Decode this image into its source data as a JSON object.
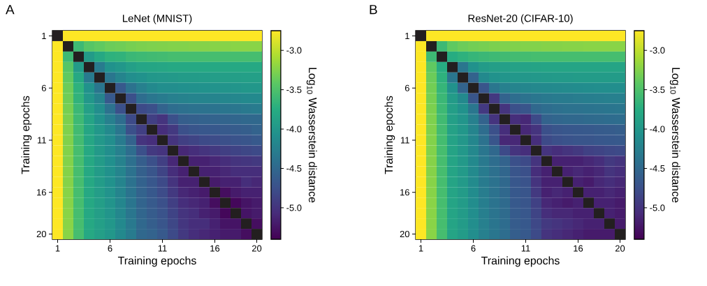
{
  "chart_data": [
    {
      "type": "heatmap",
      "title": "LeNet (MNIST)",
      "xlabel": "Training epochs",
      "ylabel": "Training epochs",
      "clabel": "Log$_{10}$ Wasserstein distance",
      "annotations": [
        "A"
      ],
      "categories": [
        "1",
        null,
        null,
        null,
        null,
        "6",
        null,
        null,
        null,
        null,
        "11",
        null,
        null,
        null,
        null,
        "16",
        null,
        null,
        null,
        "20"
      ],
      "y_categories": [
        "1",
        null,
        null,
        null,
        null,
        "6",
        null,
        null,
        null,
        null,
        "11",
        null,
        null,
        null,
        null,
        "16",
        null,
        null,
        null,
        "20"
      ],
      "clim": [
        -5.4,
        -2.75
      ],
      "cticks": [
        {
          "value": -3.0,
          "label": "-3.0"
        },
        {
          "value": -3.5,
          "label": "-3.5"
        },
        {
          "value": -4.0,
          "label": "-4.0"
        },
        {
          "value": -4.5,
          "label": "-4.5"
        },
        {
          "value": -5.0,
          "label": "-5.0"
        }
      ],
      "cells": [
        [
          null,
          -2.75,
          -2.75,
          -2.75,
          -2.75,
          -2.75,
          -2.75,
          -2.75,
          -2.75,
          -2.75,
          -2.75,
          -2.75,
          -2.75,
          -2.75,
          -2.75,
          -2.75,
          -2.75,
          -2.75,
          -2.75,
          -2.75
        ],
        [
          -2.75,
          null,
          -3.6,
          -3.45,
          -3.4,
          -3.35,
          -3.33,
          -3.3,
          -3.28,
          -3.27,
          -3.26,
          -3.25,
          -3.25,
          -3.24,
          -3.24,
          -3.23,
          -3.23,
          -3.22,
          -3.22,
          -3.22
        ],
        [
          -2.75,
          -3.6,
          null,
          -3.95,
          -3.8,
          -3.7,
          -3.68,
          -3.62,
          -3.6,
          -3.58,
          -3.57,
          -3.55,
          -3.55,
          -3.55,
          -3.55,
          -3.55,
          -3.55,
          -3.55,
          -3.55,
          -3.55
        ],
        [
          -2.75,
          -3.45,
          -3.95,
          null,
          -4.3,
          -4.05,
          -4.0,
          -3.9,
          -3.85,
          -3.83,
          -3.82,
          -3.8,
          -3.8,
          -3.8,
          -3.8,
          -3.8,
          -3.8,
          -3.8,
          -3.8,
          -3.8
        ],
        [
          -2.75,
          -3.4,
          -3.8,
          -4.3,
          null,
          -4.35,
          -4.2,
          -4.1,
          -4.05,
          -4.0,
          -3.98,
          -3.97,
          -3.95,
          -3.95,
          -3.94,
          -3.93,
          -3.92,
          -3.91,
          -3.9,
          -3.9
        ],
        [
          -2.75,
          -3.35,
          -3.7,
          -4.05,
          -4.35,
          null,
          -4.65,
          -4.4,
          -4.25,
          -4.15,
          -4.1,
          -4.1,
          -4.08,
          -4.06,
          -4.05,
          -4.04,
          -4.03,
          -4.02,
          -4.0,
          -4.0
        ],
        [
          -2.75,
          -3.33,
          -3.68,
          -4.0,
          -4.2,
          -4.65,
          null,
          -4.75,
          -4.45,
          -4.35,
          -4.3,
          -4.25,
          -4.22,
          -4.2,
          -4.2,
          -4.2,
          -4.18,
          -4.17,
          -4.15,
          -4.15
        ],
        [
          -2.75,
          -3.3,
          -3.62,
          -3.9,
          -4.1,
          -4.4,
          -4.75,
          null,
          -4.8,
          -4.75,
          -4.55,
          -4.45,
          -4.42,
          -4.4,
          -4.4,
          -4.38,
          -4.36,
          -4.35,
          -4.32,
          -4.3
        ],
        [
          -2.75,
          -3.28,
          -3.6,
          -3.85,
          -4.05,
          -4.25,
          -4.45,
          -4.8,
          null,
          -4.9,
          -5.0,
          -4.75,
          -4.6,
          -4.58,
          -4.56,
          -4.55,
          -4.54,
          -4.52,
          -4.5,
          -4.5
        ],
        [
          -2.75,
          -3.27,
          -3.58,
          -3.83,
          -4.0,
          -4.15,
          -4.35,
          -4.75,
          -4.9,
          null,
          -5.05,
          -4.95,
          -4.75,
          -4.7,
          -4.68,
          -4.66,
          -4.64,
          -4.62,
          -4.6,
          -4.55
        ],
        [
          -2.75,
          -3.26,
          -3.57,
          -3.82,
          -3.98,
          -4.1,
          -4.3,
          -4.55,
          -5.0,
          -5.05,
          null,
          -5.0,
          -4.9,
          -4.85,
          -4.8,
          -4.78,
          -4.75,
          -4.72,
          -4.7,
          -4.65
        ],
        [
          -2.75,
          -3.25,
          -3.55,
          -3.8,
          -3.97,
          -4.1,
          -4.25,
          -4.45,
          -4.75,
          -4.95,
          -5.0,
          null,
          -5.1,
          -5.05,
          -5.0,
          -4.95,
          -4.9,
          -4.86,
          -4.83,
          -4.8
        ],
        [
          -2.75,
          -3.25,
          -3.55,
          -3.8,
          -3.95,
          -4.08,
          -4.22,
          -4.42,
          -4.6,
          -4.75,
          -4.9,
          -5.1,
          null,
          -5.15,
          -5.15,
          -5.1,
          -5.05,
          -5.0,
          -4.98,
          -4.95
        ],
        [
          -2.75,
          -3.24,
          -3.55,
          -3.8,
          -3.95,
          -4.06,
          -4.2,
          -4.4,
          -4.58,
          -4.7,
          -4.85,
          -5.05,
          -5.15,
          null,
          -5.15,
          -5.15,
          -5.1,
          -5.05,
          -5.05,
          -5.05
        ],
        [
          -2.75,
          -3.24,
          -3.55,
          -3.8,
          -3.94,
          -4.05,
          -4.2,
          -4.4,
          -4.56,
          -4.68,
          -4.8,
          -5.0,
          -5.15,
          -5.15,
          null,
          -5.2,
          -5.15,
          -5.15,
          -5.05,
          -5.1
        ],
        [
          -2.75,
          -3.23,
          -3.55,
          -3.8,
          -3.93,
          -4.04,
          -4.2,
          -4.38,
          -4.55,
          -4.66,
          -4.78,
          -4.95,
          -5.1,
          -5.15,
          -5.2,
          null,
          -5.3,
          -5.2,
          -5.15,
          -5.15
        ],
        [
          -2.75,
          -3.23,
          -3.55,
          -3.8,
          -3.92,
          -4.03,
          -4.18,
          -4.36,
          -4.54,
          -4.64,
          -4.75,
          -4.9,
          -5.05,
          -5.1,
          -5.15,
          -5.3,
          null,
          -5.35,
          -5.25,
          -5.2
        ],
        [
          -2.75,
          -3.22,
          -3.55,
          -3.8,
          -3.91,
          -4.02,
          -4.17,
          -4.35,
          -4.52,
          -4.62,
          -4.72,
          -4.86,
          -5.0,
          -5.05,
          -5.15,
          -5.2,
          -5.35,
          null,
          -5.25,
          -5.2
        ],
        [
          -2.75,
          -3.22,
          -3.55,
          -3.8,
          -3.9,
          -4.0,
          -4.15,
          -4.32,
          -4.5,
          -4.6,
          -4.7,
          -4.83,
          -4.98,
          -5.05,
          -5.05,
          -5.15,
          -5.25,
          -5.25,
          null,
          -5.3
        ],
        [
          -2.75,
          -3.22,
          -3.55,
          -3.8,
          -3.9,
          -4.0,
          -4.15,
          -4.3,
          -4.5,
          -4.55,
          -4.65,
          -4.8,
          -4.95,
          -5.05,
          -5.1,
          -5.15,
          -5.2,
          -5.2,
          -5.3,
          null
        ]
      ]
    },
    {
      "type": "heatmap",
      "title": "ResNet-20 (CIFAR-10)",
      "xlabel": "Training epochs",
      "ylabel": "Training epochs",
      "clabel": "Log$_{10}$ Wasserstein distance",
      "annotations": [
        "B"
      ],
      "categories": [
        "1",
        null,
        null,
        null,
        null,
        "6",
        null,
        null,
        null,
        null,
        "11",
        null,
        null,
        null,
        null,
        "16",
        null,
        null,
        null,
        "20"
      ],
      "y_categories": [
        "1",
        null,
        null,
        null,
        null,
        "6",
        null,
        null,
        null,
        null,
        "11",
        null,
        null,
        null,
        null,
        "16",
        null,
        null,
        null,
        "20"
      ],
      "clim": [
        -5.4,
        -2.75
      ],
      "cticks": [
        {
          "value": -3.0,
          "label": "-3.0"
        },
        {
          "value": -3.5,
          "label": "-3.5"
        },
        {
          "value": -4.0,
          "label": "-4.0"
        },
        {
          "value": -4.5,
          "label": "-4.5"
        },
        {
          "value": -5.0,
          "label": "-5.0"
        }
      ],
      "cells": [
        [
          null,
          -2.75,
          -2.75,
          -2.75,
          -2.75,
          -2.75,
          -2.75,
          -2.75,
          -2.75,
          -2.75,
          -2.75,
          -2.75,
          -2.75,
          -2.75,
          -2.75,
          -2.75,
          -2.75,
          -2.75,
          -2.75,
          -2.75
        ],
        [
          -2.75,
          null,
          -3.6,
          -3.4,
          -3.35,
          -3.32,
          -3.3,
          -3.28,
          -3.27,
          -3.26,
          -3.25,
          -3.25,
          -3.24,
          -3.24,
          -3.23,
          -3.23,
          -3.22,
          -3.22,
          -3.22,
          -3.22
        ],
        [
          -2.75,
          -3.6,
          null,
          -3.75,
          -3.7,
          -3.65,
          -3.62,
          -3.6,
          -3.58,
          -3.57,
          -3.56,
          -3.55,
          -3.55,
          -3.55,
          -3.55,
          -3.55,
          -3.55,
          -3.55,
          -3.55,
          -3.55
        ],
        [
          -2.75,
          -3.4,
          -3.75,
          null,
          -4.35,
          -4.05,
          -3.95,
          -3.92,
          -3.9,
          -3.88,
          -3.87,
          -3.86,
          -3.85,
          -3.85,
          -3.85,
          -3.85,
          -3.85,
          -3.85,
          -3.85,
          -3.85
        ],
        [
          -2.75,
          -3.35,
          -3.7,
          -4.35,
          null,
          -4.55,
          -4.15,
          -4.05,
          -4.02,
          -4.0,
          -3.99,
          -3.98,
          -3.97,
          -3.96,
          -3.96,
          -3.95,
          -3.95,
          -3.95,
          -3.95,
          -3.95
        ],
        [
          -2.75,
          -3.32,
          -3.65,
          -4.05,
          -4.55,
          null,
          -4.7,
          -4.35,
          -4.25,
          -4.2,
          -4.18,
          -4.16,
          -4.15,
          -4.14,
          -4.13,
          -4.12,
          -4.11,
          -4.1,
          -4.1,
          -4.1
        ],
        [
          -2.75,
          -3.3,
          -3.62,
          -3.95,
          -4.15,
          -4.7,
          null,
          -4.95,
          -4.55,
          -4.45,
          -4.4,
          -4.35,
          -4.32,
          -4.3,
          -4.3,
          -4.28,
          -4.27,
          -4.26,
          -4.25,
          -4.25
        ],
        [
          -2.75,
          -3.28,
          -3.6,
          -3.92,
          -4.05,
          -4.35,
          -4.95,
          null,
          -5.0,
          -4.75,
          -4.7,
          -4.5,
          -4.45,
          -4.42,
          -4.4,
          -4.4,
          -4.38,
          -4.37,
          -4.36,
          -4.35
        ],
        [
          -2.75,
          -3.27,
          -3.58,
          -3.9,
          -4.02,
          -4.25,
          -4.55,
          -5.0,
          null,
          -5.05,
          -5.1,
          -4.8,
          -4.55,
          -4.52,
          -4.5,
          -4.5,
          -4.48,
          -4.47,
          -4.46,
          -4.45
        ],
        [
          -2.75,
          -3.26,
          -3.57,
          -3.88,
          -4.0,
          -4.2,
          -4.45,
          -4.75,
          -5.05,
          null,
          -5.1,
          -5.0,
          -4.75,
          -4.7,
          -4.68,
          -4.66,
          -4.65,
          -4.63,
          -4.62,
          -4.6
        ],
        [
          -2.75,
          -3.25,
          -3.56,
          -3.87,
          -3.99,
          -4.18,
          -4.4,
          -4.7,
          -5.1,
          -5.1,
          null,
          -5.05,
          -4.8,
          -4.75,
          -4.72,
          -4.7,
          -4.7,
          -4.68,
          -4.66,
          -4.65
        ],
        [
          -2.75,
          -3.25,
          -3.55,
          -3.86,
          -3.98,
          -4.16,
          -4.35,
          -4.5,
          -4.8,
          -5.0,
          -5.05,
          null,
          -5.0,
          -5.05,
          -5.0,
          -4.95,
          -4.88,
          -4.85,
          -4.82,
          -4.8
        ],
        [
          -2.75,
          -3.24,
          -3.55,
          -3.85,
          -3.97,
          -4.15,
          -4.32,
          -4.45,
          -4.55,
          -4.75,
          -4.8,
          -5.0,
          null,
          -5.15,
          -5.15,
          -5.15,
          -5.1,
          -5.05,
          -4.95,
          -5.0
        ],
        [
          -2.75,
          -3.24,
          -3.55,
          -3.85,
          -3.96,
          -4.14,
          -4.3,
          -4.42,
          -4.52,
          -4.7,
          -4.75,
          -5.05,
          -5.15,
          null,
          -5.15,
          -5.1,
          -5.15,
          -5.1,
          -5.0,
          -5.05
        ],
        [
          -2.75,
          -3.23,
          -3.55,
          -3.85,
          -3.96,
          -4.13,
          -4.3,
          -4.4,
          -4.5,
          -4.68,
          -4.72,
          -5.0,
          -5.15,
          -5.15,
          null,
          -5.15,
          -5.2,
          -5.1,
          -5.05,
          -5.1
        ],
        [
          -2.75,
          -3.23,
          -3.55,
          -3.85,
          -3.95,
          -4.12,
          -4.28,
          -4.4,
          -4.5,
          -4.66,
          -4.7,
          -4.95,
          -5.15,
          -5.1,
          -5.15,
          null,
          -5.15,
          -5.15,
          -5.1,
          -5.15
        ],
        [
          -2.75,
          -3.22,
          -3.55,
          -3.85,
          -3.95,
          -4.11,
          -4.27,
          -4.38,
          -4.48,
          -4.65,
          -4.7,
          -4.88,
          -5.1,
          -5.15,
          -5.2,
          -5.15,
          null,
          -5.15,
          -5.15,
          -5.2
        ],
        [
          -2.75,
          -3.22,
          -3.55,
          -3.85,
          -3.95,
          -4.1,
          -4.26,
          -4.37,
          -4.47,
          -4.63,
          -4.68,
          -4.85,
          -5.05,
          -5.1,
          -5.1,
          -5.15,
          -5.15,
          null,
          -5.15,
          -5.2
        ],
        [
          -2.75,
          -3.22,
          -3.55,
          -3.85,
          -3.95,
          -4.1,
          -4.25,
          -4.36,
          -4.46,
          -4.62,
          -4.66,
          -4.82,
          -4.95,
          -5.0,
          -5.05,
          -5.1,
          -5.15,
          -5.15,
          null,
          -5.2
        ],
        [
          -2.75,
          -3.22,
          -3.55,
          -3.85,
          -3.95,
          -4.1,
          -4.25,
          -4.35,
          -4.45,
          -4.6,
          -4.65,
          -4.8,
          -5.0,
          -5.05,
          -5.1,
          -5.15,
          -5.2,
          -5.2,
          -5.2,
          null
        ]
      ]
    }
  ]
}
